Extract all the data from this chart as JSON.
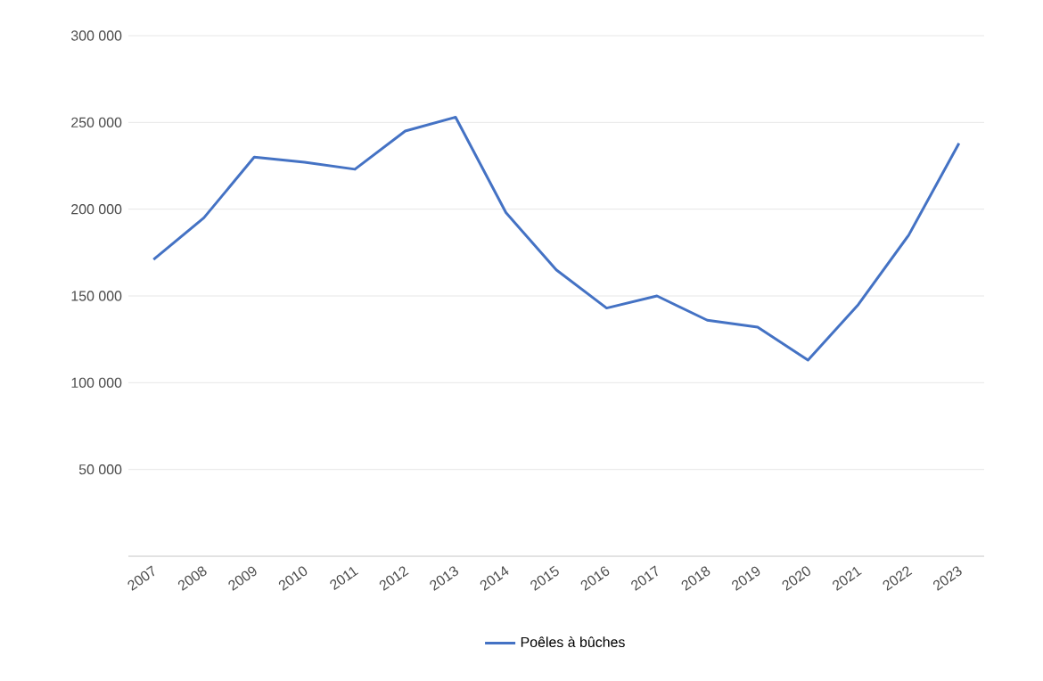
{
  "chart_data": {
    "type": "line",
    "categories": [
      "2007",
      "2008",
      "2009",
      "2010",
      "2011",
      "2012",
      "2013",
      "2014",
      "2015",
      "2016",
      "2017",
      "2018",
      "2019",
      "2020",
      "2021",
      "2022",
      "2023"
    ],
    "series": [
      {
        "name": "Poêles à bûches",
        "color": "#4472c4",
        "values": [
          171000,
          195000,
          230000,
          227000,
          223000,
          245000,
          253000,
          198000,
          165000,
          143000,
          150000,
          136000,
          132000,
          113000,
          145000,
          185000,
          238000
        ]
      }
    ],
    "ylim": [
      0,
      300000
    ],
    "yticks": [
      {
        "value": 0,
        "label": null
      },
      {
        "value": 50000,
        "label": "50 000"
      },
      {
        "value": 100000,
        "label": "100 000"
      },
      {
        "value": 150000,
        "label": "150 000"
      },
      {
        "value": 200000,
        "label": "200 000"
      },
      {
        "value": 250000,
        "label": "250 000"
      },
      {
        "value": 300000,
        "label": "300 000"
      }
    ],
    "grid": "y",
    "legend": "bottom",
    "marker": "none",
    "line_style": "solid"
  }
}
